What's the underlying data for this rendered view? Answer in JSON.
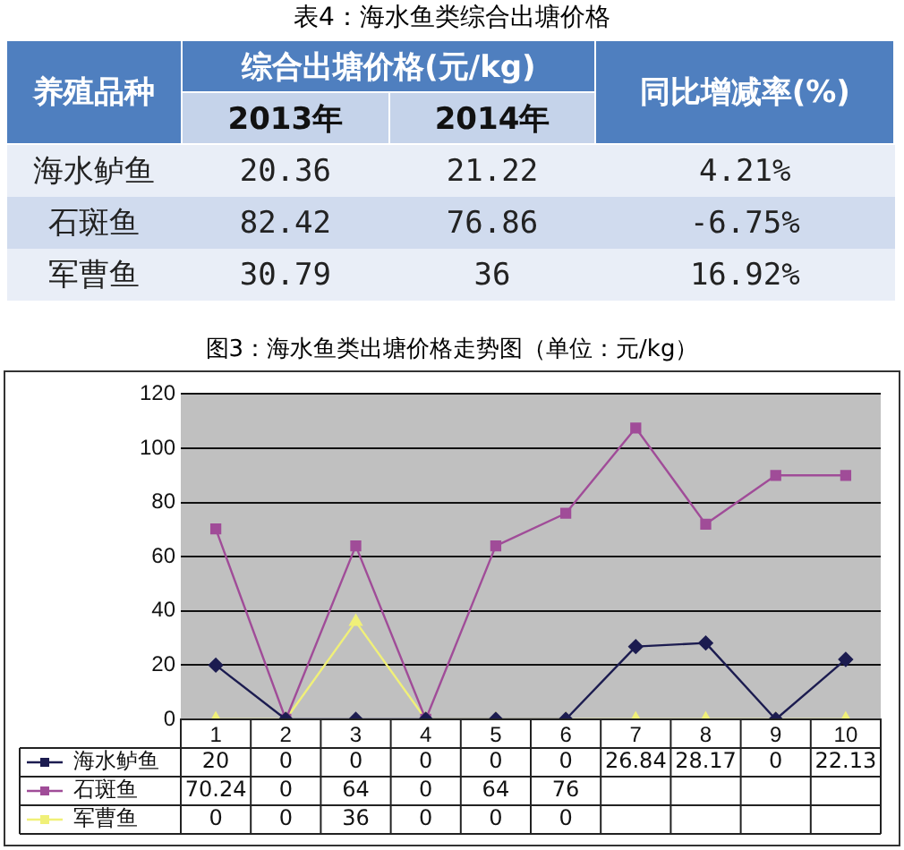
{
  "chart_data": [
    {
      "type": "other",
      "title": "表4：海水鱼类综合出塘价格",
      "ylabel": "养殖品种",
      "xlabel": "综合出塘价格(元/kg)",
      "categories": [
        "2013年",
        "2014年",
        "同比增减率(%)"
      ],
      "y_categories": [
        "海水鲈鱼",
        "石斑鱼",
        "军曹鱼"
      ],
      "cell_labels": [
        [
          "20.36",
          "21.22",
          "4.21%"
        ],
        [
          "82.42",
          "76.86",
          "-6.75%"
        ],
        [
          "30.79",
          "36",
          "16.92%"
        ]
      ]
    },
    {
      "type": "line",
      "title": "图3：海水鱼类出塘价格走势图（单位：元/kg）",
      "categories": [
        "1",
        "2",
        "3",
        "4",
        "5",
        "6",
        "7",
        "8",
        "9",
        "10"
      ],
      "series": [
        {
          "name": "海水鲈鱼",
          "color": "#1c1c50",
          "marker": "diamond",
          "values": [
            20,
            0,
            0,
            0,
            0,
            0,
            26.84,
            28.17,
            0,
            22.13
          ],
          "value_labels": [
            "20",
            "0",
            "0",
            "0",
            "0",
            "0",
            "26.84",
            "28.17",
            "0",
            "22.13"
          ]
        },
        {
          "name": "石斑鱼",
          "color": "#a04c98",
          "marker": "square",
          "values": [
            70.24,
            0,
            64,
            0,
            64,
            76,
            107.5,
            72,
            90,
            90
          ],
          "value_labels": [
            "70.24",
            "0",
            "64",
            "0",
            "64",
            "76",
            null,
            null,
            null,
            null
          ]
        },
        {
          "name": "军曹鱼",
          "color": "#f0f078",
          "marker": "triangle",
          "values": [
            0,
            0,
            36,
            0,
            0,
            0,
            0,
            0,
            0,
            0
          ],
          "value_labels": [
            "0",
            "0",
            "36",
            "0",
            "0",
            "0",
            null,
            null,
            null,
            null
          ]
        }
      ],
      "ylim": [
        0,
        120
      ],
      "yticks": [
        0,
        20,
        40,
        60,
        80,
        100,
        120
      ],
      "grid": "y",
      "legend": "bottom"
    }
  ]
}
